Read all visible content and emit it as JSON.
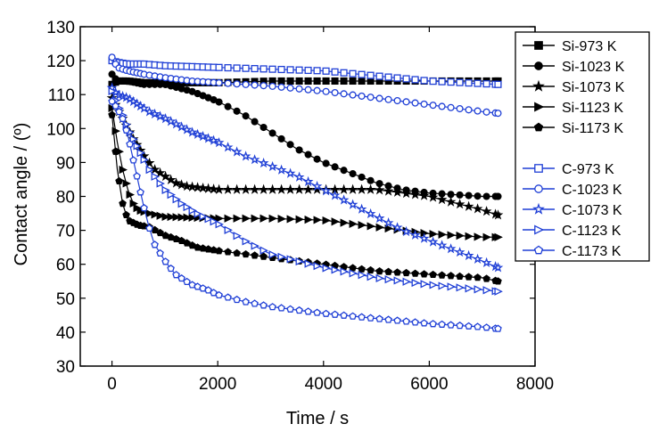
{
  "chart_data": {
    "type": "line",
    "title": "",
    "xlabel": "Time / s",
    "ylabel": "Contact angle / (º)",
    "xlim": [
      -600,
      8000
    ],
    "ylim": [
      30,
      130
    ],
    "x_ticks": [
      0,
      2000,
      4000,
      6000,
      8000
    ],
    "y_ticks": [
      30,
      40,
      50,
      60,
      70,
      80,
      90,
      100,
      110,
      120,
      130
    ],
    "grid": false,
    "legend_position": "top-right",
    "colors": {
      "si": "#000000",
      "c": "#1f3fd6"
    },
    "series": [
      {
        "name": "Si-973 K",
        "group": "si",
        "marker": "square",
        "filled": true,
        "points": [
          [
            0,
            113
          ],
          [
            100,
            114
          ],
          [
            300,
            114
          ],
          [
            600,
            113.5
          ],
          [
            1000,
            113.5
          ],
          [
            2000,
            113.5
          ],
          [
            3000,
            114
          ],
          [
            4000,
            114
          ],
          [
            5000,
            114
          ],
          [
            6000,
            114
          ],
          [
            7300,
            114
          ]
        ]
      },
      {
        "name": "Si-1023 K",
        "group": "si",
        "marker": "circle",
        "filled": true,
        "points": [
          [
            0,
            116
          ],
          [
            100,
            114
          ],
          [
            300,
            114
          ],
          [
            600,
            113
          ],
          [
            1000,
            113
          ],
          [
            1500,
            111
          ],
          [
            2000,
            108
          ],
          [
            2500,
            104
          ],
          [
            3000,
            99
          ],
          [
            3500,
            94
          ],
          [
            4000,
            90
          ],
          [
            4500,
            87
          ],
          [
            5000,
            84
          ],
          [
            5500,
            82
          ],
          [
            6000,
            81
          ],
          [
            6500,
            80.5
          ],
          [
            7000,
            80
          ],
          [
            7300,
            80
          ]
        ]
      },
      {
        "name": "Si-1073 K",
        "group": "si",
        "marker": "star",
        "filled": true,
        "points": [
          [
            0,
            109
          ],
          [
            200,
            103
          ],
          [
            400,
            97
          ],
          [
            600,
            92
          ],
          [
            800,
            88
          ],
          [
            1000,
            86
          ],
          [
            1200,
            84
          ],
          [
            1400,
            83
          ],
          [
            1700,
            82.5
          ],
          [
            2000,
            82
          ],
          [
            3000,
            82
          ],
          [
            4000,
            82
          ],
          [
            5000,
            82
          ],
          [
            6000,
            80
          ],
          [
            6500,
            78
          ],
          [
            7000,
            76
          ],
          [
            7300,
            74.5
          ]
        ]
      },
      {
        "name": "Si-1123 K",
        "group": "si",
        "marker": "triangle-right",
        "filled": true,
        "points": [
          [
            0,
            106
          ],
          [
            100,
            96
          ],
          [
            200,
            88
          ],
          [
            300,
            82
          ],
          [
            400,
            78
          ],
          [
            500,
            76
          ],
          [
            700,
            75
          ],
          [
            1000,
            74
          ],
          [
            2000,
            73.5
          ],
          [
            3000,
            73.5
          ],
          [
            4000,
            73
          ],
          [
            5000,
            71
          ],
          [
            6000,
            69
          ],
          [
            7000,
            68
          ],
          [
            7300,
            68
          ]
        ]
      },
      {
        "name": "Si-1173 K",
        "group": "si",
        "marker": "pentagon",
        "filled": true,
        "points": [
          [
            0,
            104
          ],
          [
            100,
            88
          ],
          [
            200,
            78
          ],
          [
            300,
            73
          ],
          [
            500,
            71.5
          ],
          [
            700,
            71
          ],
          [
            1000,
            68.5
          ],
          [
            1300,
            67
          ],
          [
            1600,
            65
          ],
          [
            2000,
            64
          ],
          [
            2500,
            63
          ],
          [
            3000,
            62
          ],
          [
            4000,
            60
          ],
          [
            5000,
            58
          ],
          [
            6000,
            57
          ],
          [
            7000,
            56
          ],
          [
            7300,
            55
          ]
        ]
      },
      {
        "name": "C-973 K",
        "group": "c",
        "marker": "square",
        "filled": false,
        "points": [
          [
            0,
            120
          ],
          [
            100,
            119.5
          ],
          [
            300,
            119
          ],
          [
            600,
            119
          ],
          [
            1000,
            118.5
          ],
          [
            2000,
            118
          ],
          [
            3000,
            117.5
          ],
          [
            4000,
            117
          ],
          [
            5000,
            115.5
          ],
          [
            6000,
            114
          ],
          [
            7300,
            113
          ]
        ]
      },
      {
        "name": "C-1023 K",
        "group": "c",
        "marker": "circle",
        "filled": false,
        "points": [
          [
            0,
            121
          ],
          [
            100,
            118
          ],
          [
            300,
            117
          ],
          [
            600,
            116
          ],
          [
            1000,
            115
          ],
          [
            1500,
            114
          ],
          [
            2000,
            113.5
          ],
          [
            3000,
            112.5
          ],
          [
            4000,
            111
          ],
          [
            5000,
            109
          ],
          [
            6000,
            107
          ],
          [
            7000,
            105
          ],
          [
            7300,
            104.5
          ]
        ]
      },
      {
        "name": "C-1073 K",
        "group": "c",
        "marker": "star",
        "filled": false,
        "points": [
          [
            0,
            112
          ],
          [
            100,
            110
          ],
          [
            300,
            109
          ],
          [
            500,
            107
          ],
          [
            700,
            105
          ],
          [
            1000,
            103
          ],
          [
            1500,
            99
          ],
          [
            2000,
            96
          ],
          [
            2500,
            92
          ],
          [
            3000,
            89
          ],
          [
            3500,
            86
          ],
          [
            4000,
            82
          ],
          [
            4500,
            78
          ],
          [
            5000,
            74
          ],
          [
            5500,
            70
          ],
          [
            6000,
            67
          ],
          [
            6500,
            64
          ],
          [
            7000,
            61
          ],
          [
            7300,
            59
          ]
        ]
      },
      {
        "name": "C-1123 K",
        "group": "c",
        "marker": "triangle-right",
        "filled": false,
        "points": [
          [
            0,
            111
          ],
          [
            100,
            107
          ],
          [
            200,
            104
          ],
          [
            300,
            100
          ],
          [
            500,
            94
          ],
          [
            700,
            88
          ],
          [
            1000,
            82
          ],
          [
            1300,
            78
          ],
          [
            1600,
            75
          ],
          [
            2000,
            72
          ],
          [
            2500,
            67
          ],
          [
            3000,
            63
          ],
          [
            3500,
            61
          ],
          [
            4000,
            59
          ],
          [
            5000,
            56
          ],
          [
            6000,
            54
          ],
          [
            7000,
            52.5
          ],
          [
            7300,
            52
          ]
        ]
      },
      {
        "name": "C-1173 K",
        "group": "c",
        "marker": "pentagon",
        "filled": false,
        "points": [
          [
            0,
            108
          ],
          [
            100,
            106
          ],
          [
            200,
            103
          ],
          [
            300,
            98
          ],
          [
            400,
            91
          ],
          [
            500,
            84
          ],
          [
            600,
            77
          ],
          [
            700,
            71
          ],
          [
            800,
            66
          ],
          [
            1000,
            61
          ],
          [
            1200,
            57
          ],
          [
            1500,
            54
          ],
          [
            1800,
            52.5
          ],
          [
            2000,
            51
          ],
          [
            2500,
            49
          ],
          [
            3000,
            47.5
          ],
          [
            3500,
            46.5
          ],
          [
            4000,
            45.5
          ],
          [
            5000,
            44
          ],
          [
            6000,
            42.5
          ],
          [
            7000,
            41.5
          ],
          [
            7300,
            41
          ]
        ]
      }
    ]
  }
}
